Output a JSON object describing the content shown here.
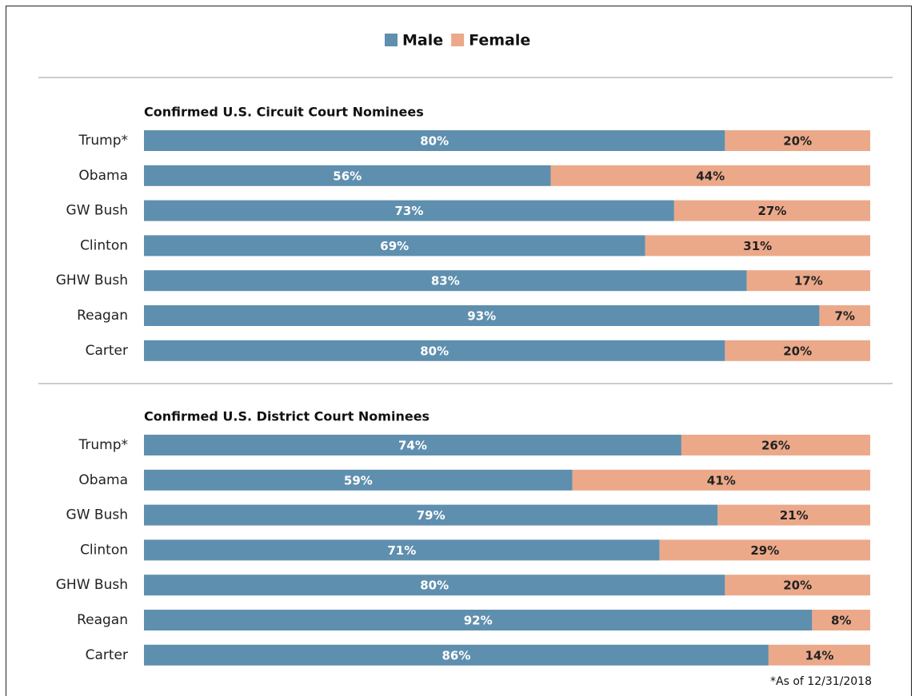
{
  "chart_data": {
    "type": "bar",
    "orientation": "horizontal",
    "stacked": true,
    "xlim": [
      0,
      100
    ],
    "series": [
      {
        "name": "Male",
        "color": "#5f8fae"
      },
      {
        "name": "Female",
        "color": "#eba98a"
      }
    ],
    "panels": [
      {
        "title": "Confirmed U.S. Circuit Court Nominees",
        "categories": [
          "Trump*",
          "Obama",
          "GW Bush",
          "Clinton",
          "GHW Bush",
          "Reagan",
          "Carter"
        ],
        "values": [
          [
            80,
            56,
            73,
            69,
            83,
            93,
            80
          ],
          [
            20,
            44,
            27,
            31,
            17,
            7,
            20
          ]
        ],
        "value_labels": [
          [
            "80%",
            "56%",
            "73%",
            "69%",
            "83%",
            "93%",
            "80%"
          ],
          [
            "20%",
            "44%",
            "27%",
            "31%",
            "17%",
            "7%",
            "20%"
          ]
        ]
      },
      {
        "title": "Confirmed U.S. District Court Nominees",
        "categories": [
          "Trump*",
          "Obama",
          "GW Bush",
          "Clinton",
          "GHW Bush",
          "Reagan",
          "Carter"
        ],
        "values": [
          [
            74,
            59,
            79,
            71,
            80,
            92,
            86
          ],
          [
            26,
            41,
            21,
            29,
            20,
            8,
            14
          ]
        ],
        "value_labels": [
          [
            "74%",
            "59%",
            "79%",
            "71%",
            "80%",
            "92%",
            "86%"
          ],
          [
            "26%",
            "41%",
            "21%",
            "29%",
            "20%",
            "8%",
            "14%"
          ]
        ]
      }
    ],
    "note": "*As of 12/31/2018"
  }
}
